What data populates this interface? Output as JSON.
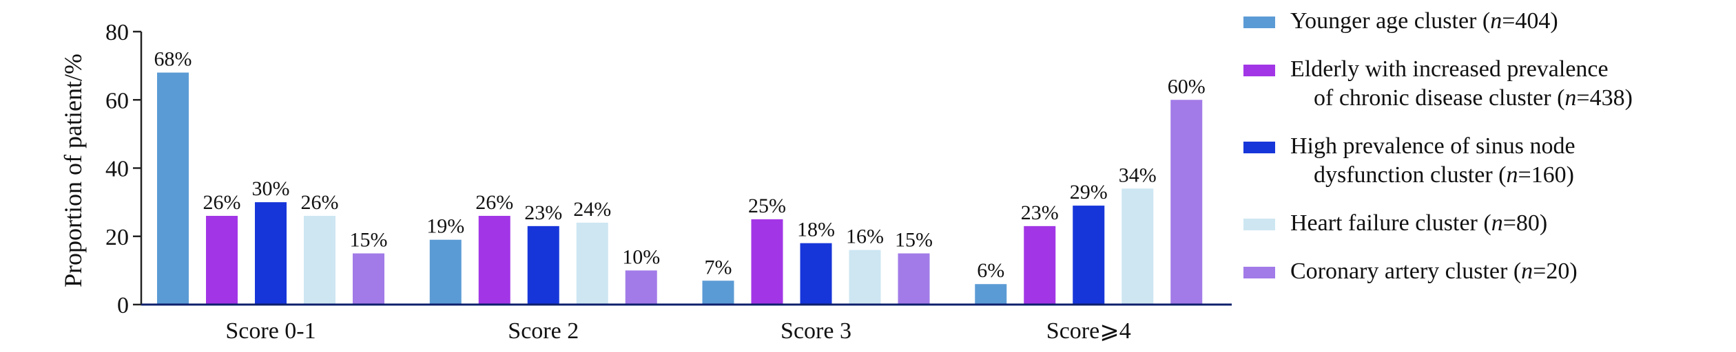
{
  "chart_data": {
    "type": "bar",
    "ylabel": "Proportion of patient/%",
    "ylim": [
      0,
      80
    ],
    "yticks": [
      "0",
      "20",
      "40",
      "60",
      "80"
    ],
    "categories": [
      "Score 0-1",
      "Score 2",
      "Score 3",
      "Score⩾4"
    ],
    "series": [
      {
        "name": "Younger age cluster",
        "n": "404",
        "color": "#5b9bd5",
        "values": [
          68,
          19,
          7,
          6
        ],
        "labels": [
          "68%",
          "19%",
          "7%",
          "6%"
        ]
      },
      {
        "name": "Elderly with increased prevalence of chronic disease cluster",
        "n": "438",
        "color": "#a236e6",
        "values": [
          26,
          26,
          25,
          23
        ],
        "labels": [
          "26%",
          "26%",
          "25%",
          "23%"
        ]
      },
      {
        "name": "High prevalence of sinus node dysfunction cluster",
        "n": "160",
        "color": "#1736d9",
        "values": [
          30,
          23,
          18,
          29
        ],
        "labels": [
          "30%",
          "23%",
          "18%",
          "29%"
        ]
      },
      {
        "name": "Heart failure cluster",
        "n": "80",
        "color": "#cde6f2",
        "values": [
          26,
          24,
          16,
          34
        ],
        "labels": [
          "26%",
          "24%",
          "16%",
          "34%"
        ]
      },
      {
        "name": "Coronary artery cluster",
        "n": "20",
        "color": "#a27be8",
        "values": [
          15,
          10,
          15,
          60
        ],
        "labels": [
          "15%",
          "10%",
          "15%",
          "60%"
        ]
      }
    ],
    "legend_position": "right",
    "grid": false
  },
  "legend": {
    "n_symbol": "n",
    "items": [
      {
        "line1": "Younger age cluster (",
        "line2": "",
        "n": "404"
      },
      {
        "line1": "Elderly with increased prevalence",
        "line2": "of chronic disease cluster (",
        "n": "438"
      },
      {
        "line1": "High prevalence of sinus node",
        "line2": "dysfunction cluster (",
        "n": "160"
      },
      {
        "line1": "Heart failure cluster (",
        "line2": "",
        "n": "80"
      },
      {
        "line1": "Coronary artery cluster (",
        "line2": "",
        "n": "20"
      }
    ]
  }
}
